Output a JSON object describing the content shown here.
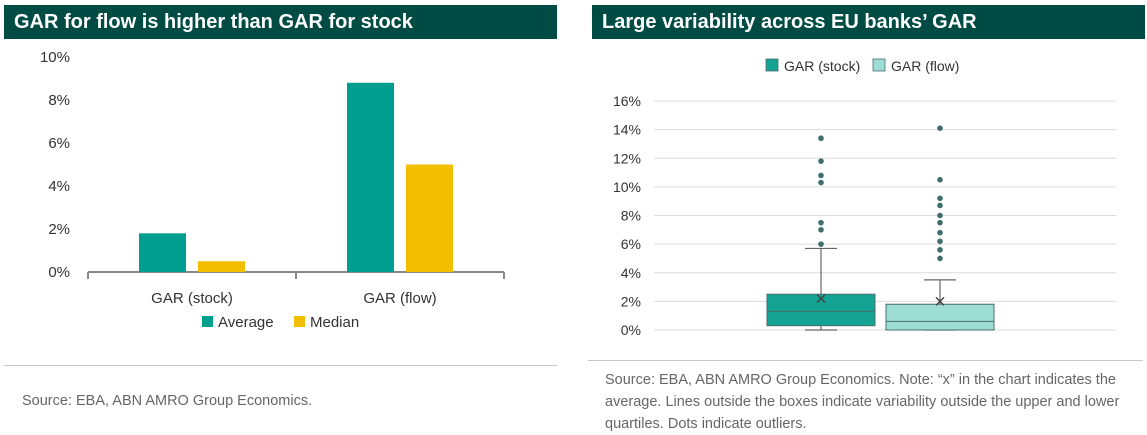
{
  "colors": {
    "header_bg": "#004c45",
    "average": "#009e8f",
    "median": "#f2bf00",
    "stock_box": "#14a392",
    "flow_box": "#9dddd4",
    "dots": "#3f6e6b"
  },
  "left": {
    "title": "GAR for flow is higher than GAR for stock",
    "source": "Source: EBA, ABN AMRO Group Economics."
  },
  "right": {
    "title": "Large variability across EU banks’ GAR",
    "source": "Source: EBA, ABN AMRO Group Economics. Note: “x” in the chart indicates the average. Lines outside the boxes indicate variability outside the upper and lower quartiles. Dots indicate outliers."
  },
  "chart_data": [
    {
      "type": "bar",
      "title": "GAR for flow is higher than GAR for stock",
      "categories": [
        "GAR (stock)",
        "GAR (flow)"
      ],
      "series": [
        {
          "name": "Average",
          "values": [
            1.8,
            8.8
          ]
        },
        {
          "name": "Median",
          "values": [
            0.5,
            5.0
          ]
        }
      ],
      "ylim": [
        0,
        10
      ],
      "yticks": [
        "0%",
        "2%",
        "4%",
        "6%",
        "8%",
        "10%"
      ],
      "legend": "bottom",
      "grid": false
    },
    {
      "type": "boxplot",
      "title": "Large variability across EU banks’ GAR",
      "series": [
        {
          "name": "GAR (stock)",
          "whisker_low": 0.0,
          "q1": 0.3,
          "median": 1.3,
          "q3": 2.5,
          "whisker_high": 5.7,
          "mean": 2.2,
          "outliers": [
            6.0,
            7.0,
            7.5,
            10.3,
            10.8,
            11.8,
            13.4
          ]
        },
        {
          "name": "GAR (flow)",
          "whisker_low": 0.0,
          "q1": 0.0,
          "median": 0.6,
          "q3": 1.8,
          "whisker_high": 3.5,
          "mean": 2.0,
          "outliers": [
            5.0,
            5.6,
            6.2,
            6.8,
            7.5,
            8.0,
            8.7,
            9.2,
            10.5,
            14.1
          ]
        }
      ],
      "ylim": [
        0,
        16
      ],
      "yticks": [
        "0%",
        "2%",
        "4%",
        "6%",
        "8%",
        "10%",
        "12%",
        "14%",
        "16%"
      ],
      "legend": "top",
      "grid": true
    }
  ]
}
